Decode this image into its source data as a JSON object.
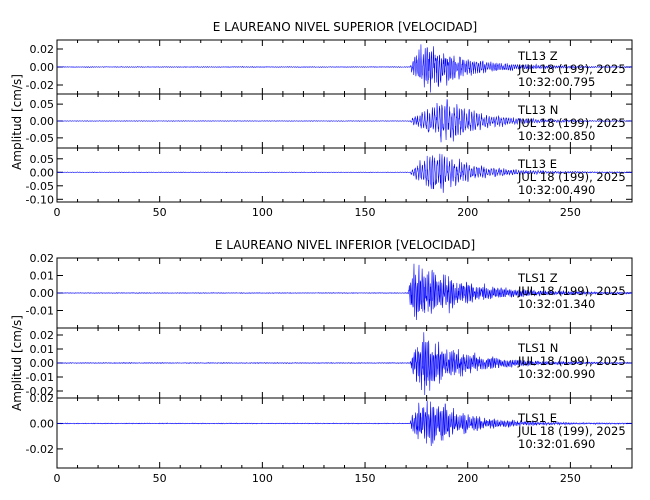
{
  "colors": {
    "trace": "#0000ff",
    "axes": "#000000",
    "background": "#ffffff"
  },
  "chart_data": [
    {
      "type": "line",
      "title": "E LAUREANO NIVEL SUPERIOR [VELOCIDAD]",
      "ylabel": "Amplitud [cm/s]",
      "xlabel": "",
      "xlim": [
        0,
        280
      ],
      "xticks": [
        "0",
        "50",
        "100",
        "150",
        "200",
        "250"
      ],
      "x_unit": "s",
      "traces": [
        {
          "station": "TL13",
          "component": "Z",
          "date": "JUL 18 (199), 2025",
          "time": "10:32:00.795",
          "ylim": [
            -0.03,
            0.03
          ],
          "yticks": [
            "0.02",
            "0.00",
            "-0.02"
          ],
          "noise_amplitude": 0.0004,
          "onset": 172,
          "peak_time": 180,
          "peak_amplitude": 0.028,
          "decay_end": 240,
          "dominant_period": 1.0
        },
        {
          "station": "TL13",
          "component": "N",
          "date": "JUL 18 (199), 2025",
          "time": "10:32:00.850",
          "ylim": [
            -0.08,
            0.08
          ],
          "yticks": [
            "0.05",
            "0.00",
            "-0.05"
          ],
          "noise_amplitude": 0.0008,
          "onset": 172,
          "peak_time": 190,
          "peak_amplitude": 0.06,
          "decay_end": 245,
          "dominant_period": 1.2
        },
        {
          "station": "TL13",
          "component": "E",
          "date": "JUL 18 (199), 2025",
          "time": "10:32:00.490",
          "ylim": [
            -0.11,
            0.09
          ],
          "yticks": [
            "0.05",
            "0.00",
            "-0.05",
            "-0.10"
          ],
          "noise_amplitude": 0.001,
          "onset": 172,
          "peak_time": 185,
          "peak_amplitude": 0.07,
          "decay_end": 245,
          "dominant_period": 1.2
        }
      ]
    },
    {
      "type": "line",
      "title": "E LAUREANO NIVEL INFERIOR [VELOCIDAD]",
      "ylabel": "Amplitud [cm/s]",
      "xlabel": "",
      "xlim": [
        0,
        280
      ],
      "xticks": [
        "0",
        "50",
        "100",
        "150",
        "200",
        "250"
      ],
      "x_unit": "s",
      "traces": [
        {
          "station": "TLS1",
          "component": "Z",
          "date": "JUL 18 (199), 2025",
          "time": "10:32:01.340",
          "ylim": [
            -0.02,
            0.02
          ],
          "yticks": [
            "0.02",
            "0.01",
            "0.00",
            "-0.01"
          ],
          "noise_amplitude": 0.0002,
          "onset": 171,
          "peak_time": 174,
          "peak_amplitude": 0.018,
          "decay_end": 250,
          "dominant_period": 0.8
        },
        {
          "station": "TLS1",
          "component": "N",
          "date": "JUL 18 (199), 2025",
          "time": "10:32:00.990",
          "ylim": [
            -0.025,
            0.025
          ],
          "yticks": [
            "0.02",
            "0.01",
            "0.00",
            "-0.01",
            "-0.02"
          ],
          "noise_amplitude": 0.0003,
          "onset": 172,
          "peak_time": 178,
          "peak_amplitude": 0.022,
          "decay_end": 240,
          "dominant_period": 0.8
        },
        {
          "station": "TLS1",
          "component": "E",
          "date": "JUL 18 (199), 2025",
          "time": "10:32:01.690",
          "ylim": [
            -0.035,
            0.02
          ],
          "yticks": [
            "0.02",
            "0.00",
            "-0.02"
          ],
          "noise_amplitude": 0.0003,
          "onset": 172,
          "peak_time": 178,
          "peak_amplitude": 0.02,
          "decay_end": 240,
          "dominant_period": 0.8
        }
      ]
    }
  ]
}
